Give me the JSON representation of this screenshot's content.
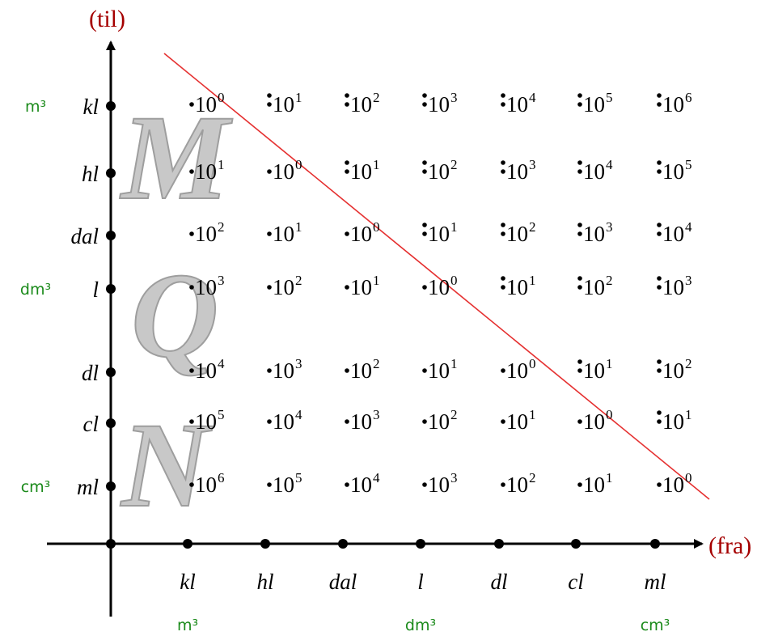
{
  "axes": {
    "y_title": "(til)",
    "x_title": "(fra)",
    "y_units": [
      "kl",
      "hl",
      "dal",
      "l",
      "dl",
      "cl",
      "ml"
    ],
    "x_units": [
      "kl",
      "hl",
      "dal",
      "l",
      "dl",
      "cl",
      "ml"
    ]
  },
  "y_side_labels": [
    {
      "row": 0,
      "text": "m³"
    },
    {
      "row": 3,
      "text": "dm³"
    },
    {
      "row": 6,
      "text": "cm³"
    }
  ],
  "x_side_labels": [
    {
      "col": 0,
      "text": "m³"
    },
    {
      "col": 3,
      "text": "dm³"
    },
    {
      "col": 6,
      "text": "cm³"
    }
  ],
  "watermark_letters": [
    "M",
    "Q",
    "N"
  ],
  "grid": {
    "base": "10",
    "cells": [
      [
        {
          "exp": "0",
          "mark": "."
        },
        {
          "exp": "1",
          "mark": ":"
        },
        {
          "exp": "2",
          "mark": ":"
        },
        {
          "exp": "3",
          "mark": ":"
        },
        {
          "exp": "4",
          "mark": ":"
        },
        {
          "exp": "5",
          "mark": ":"
        },
        {
          "exp": "6",
          "mark": ":"
        }
      ],
      [
        {
          "exp": "1",
          "mark": "."
        },
        {
          "exp": "0",
          "mark": "."
        },
        {
          "exp": "1",
          "mark": ":"
        },
        {
          "exp": "2",
          "mark": ":"
        },
        {
          "exp": "3",
          "mark": ":"
        },
        {
          "exp": "4",
          "mark": ":"
        },
        {
          "exp": "5",
          "mark": ":"
        }
      ],
      [
        {
          "exp": "2",
          "mark": "."
        },
        {
          "exp": "1",
          "mark": "."
        },
        {
          "exp": "0",
          "mark": "."
        },
        {
          "exp": "1",
          "mark": ":"
        },
        {
          "exp": "2",
          "mark": ":"
        },
        {
          "exp": "3",
          "mark": ":"
        },
        {
          "exp": "4",
          "mark": ":"
        }
      ],
      [
        {
          "exp": "3",
          "mark": "."
        },
        {
          "exp": "2",
          "mark": "."
        },
        {
          "exp": "1",
          "mark": "."
        },
        {
          "exp": "0",
          "mark": "."
        },
        {
          "exp": "1",
          "mark": ":"
        },
        {
          "exp": "2",
          "mark": ":"
        },
        {
          "exp": "3",
          "mark": ":"
        }
      ],
      [
        {
          "exp": "4",
          "mark": "."
        },
        {
          "exp": "3",
          "mark": "."
        },
        {
          "exp": "2",
          "mark": "."
        },
        {
          "exp": "1",
          "mark": "."
        },
        {
          "exp": "0",
          "mark": "."
        },
        {
          "exp": "1",
          "mark": ":"
        },
        {
          "exp": "2",
          "mark": ":"
        }
      ],
      [
        {
          "exp": "5",
          "mark": "."
        },
        {
          "exp": "4",
          "mark": "."
        },
        {
          "exp": "3",
          "mark": "."
        },
        {
          "exp": "2",
          "mark": "."
        },
        {
          "exp": "1",
          "mark": "."
        },
        {
          "exp": "0",
          "mark": "."
        },
        {
          "exp": "1",
          "mark": ":"
        }
      ],
      [
        {
          "exp": "6",
          "mark": "."
        },
        {
          "exp": "5",
          "mark": "."
        },
        {
          "exp": "4",
          "mark": "."
        },
        {
          "exp": "3",
          "mark": "."
        },
        {
          "exp": "2",
          "mark": "."
        },
        {
          "exp": "1",
          "mark": "."
        },
        {
          "exp": "0",
          "mark": "."
        }
      ]
    ]
  },
  "colors": {
    "axis": "#000000",
    "axis_title": "#a50000",
    "side_label": "#1a8a1a",
    "diagonal": "#e53030"
  }
}
